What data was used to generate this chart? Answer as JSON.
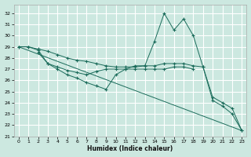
{
  "xlabel": "Humidex (Indice chaleur)",
  "background_color": "#cce8e0",
  "grid_color": "#ffffff",
  "line_color": "#1a6b5a",
  "xlim": [
    -0.5,
    23.5
  ],
  "ylim": [
    21,
    32.8
  ],
  "yticks": [
    21,
    22,
    23,
    24,
    25,
    26,
    27,
    28,
    29,
    30,
    31,
    32
  ],
  "xticks": [
    0,
    1,
    2,
    3,
    4,
    5,
    6,
    7,
    8,
    9,
    10,
    11,
    12,
    13,
    14,
    15,
    16,
    17,
    18,
    19,
    20,
    21,
    22,
    23
  ],
  "line1_x": [
    0,
    1,
    2,
    3,
    4,
    5,
    6,
    7,
    8,
    9,
    10,
    11,
    12,
    13,
    14,
    15,
    16,
    17,
    18,
    19,
    20,
    21,
    22,
    23
  ],
  "line1_y": [
    29.0,
    29.0,
    28.8,
    28.6,
    28.3,
    28.0,
    27.8,
    27.7,
    27.5,
    27.3,
    27.2,
    27.2,
    27.2,
    27.3,
    27.3,
    27.5,
    27.5,
    27.5,
    27.3,
    27.2,
    24.5,
    24.0,
    23.5,
    21.5
  ],
  "line2_x": [
    0,
    1,
    2,
    3,
    4,
    5,
    6,
    7,
    8,
    9,
    10,
    11,
    12,
    13,
    14,
    15,
    16,
    17,
    18
  ],
  "line2_y": [
    29.0,
    29.0,
    28.7,
    27.5,
    27.2,
    26.9,
    26.7,
    26.5,
    26.8,
    27.0,
    27.0,
    27.0,
    27.0,
    27.0,
    27.0,
    27.0,
    27.2,
    27.2,
    27.0
  ],
  "line3_x": [
    2,
    3,
    4,
    5,
    6,
    7,
    8,
    9,
    10,
    11,
    12,
    13,
    14,
    15,
    16,
    17,
    18,
    19,
    20,
    21,
    22,
    23
  ],
  "line3_y": [
    28.5,
    27.5,
    27.0,
    26.5,
    26.2,
    25.8,
    25.5,
    25.2,
    26.5,
    27.0,
    27.3,
    27.3,
    29.5,
    32.0,
    30.5,
    31.5,
    30.0,
    27.2,
    24.2,
    23.7,
    23.0,
    21.5
  ],
  "line4_x": [
    0,
    23
  ],
  "line4_y": [
    29.0,
    21.5
  ]
}
